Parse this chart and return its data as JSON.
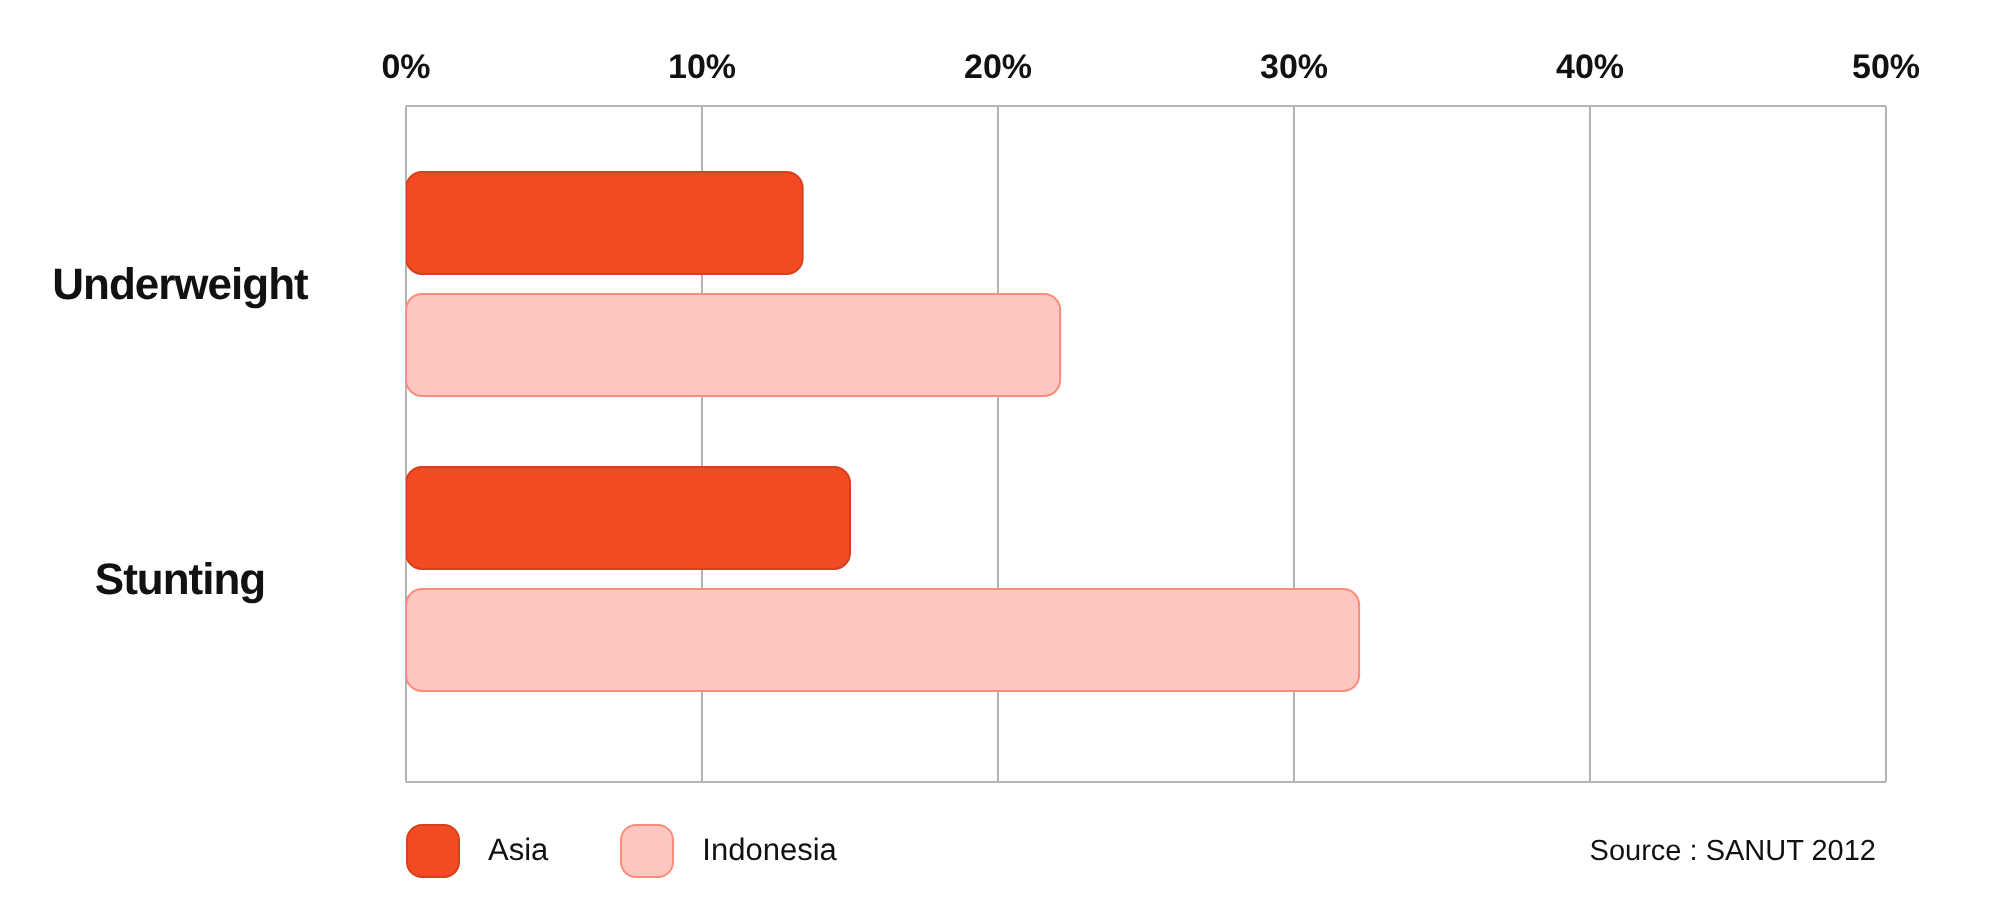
{
  "chart_data": {
    "type": "bar",
    "orientation": "horizontal",
    "categories": [
      "Underweight",
      "Stunting"
    ],
    "series": [
      {
        "name": "Asia",
        "color": "#f24a22",
        "values": [
          13.4,
          15.0
        ]
      },
      {
        "name": "Indonesia",
        "color": "#fec6c1",
        "values": [
          22.1,
          32.2
        ]
      }
    ],
    "xlim": [
      0,
      50
    ],
    "xticks": [
      {
        "value": 0,
        "label": "0%"
      },
      {
        "value": 10,
        "label": "10%"
      },
      {
        "value": 20,
        "label": "20%"
      },
      {
        "value": 30,
        "label": "30%"
      },
      {
        "value": 40,
        "label": "40%"
      },
      {
        "value": 50,
        "label": "50%"
      }
    ],
    "grid": "x",
    "legend": "bottom left",
    "annotations": [
      "Source : SANUT 2012"
    ]
  }
}
